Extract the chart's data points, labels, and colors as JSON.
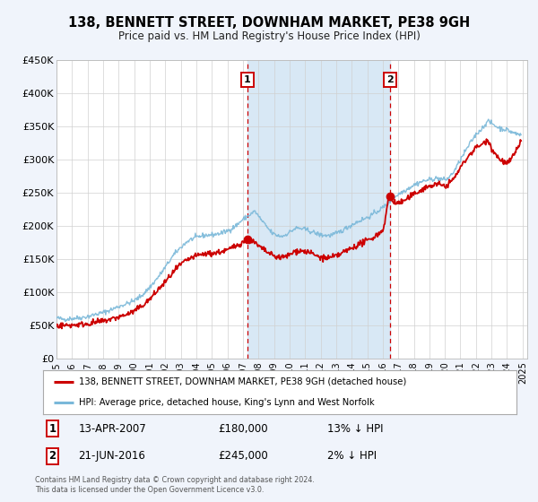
{
  "title": "138, BENNETT STREET, DOWNHAM MARKET, PE38 9GH",
  "subtitle": "Price paid vs. HM Land Registry's House Price Index (HPI)",
  "ylim": [
    0,
    450000
  ],
  "xlim_start": 1995.0,
  "xlim_end": 2025.3,
  "hpi_color": "#7ab8d9",
  "price_color": "#cc0000",
  "bg_color": "#f0f4fb",
  "plot_bg": "#ffffff",
  "highlight_color": "#d8e8f5",
  "sale1_x": 2007.28,
  "sale1_y": 180000,
  "sale2_x": 2016.47,
  "sale2_y": 245000,
  "legend_line1": "138, BENNETT STREET, DOWNHAM MARKET, PE38 9GH (detached house)",
  "legend_line2": "HPI: Average price, detached house, King's Lynn and West Norfolk",
  "sale1_date": "13-APR-2007",
  "sale1_price": "£180,000",
  "sale1_hpi": "13% ↓ HPI",
  "sale2_date": "21-JUN-2016",
  "sale2_price": "£245,000",
  "sale2_hpi": "2% ↓ HPI",
  "footer1": "Contains HM Land Registry data © Crown copyright and database right 2024.",
  "footer2": "This data is licensed under the Open Government Licence v3.0.",
  "yticks": [
    0,
    50000,
    100000,
    150000,
    200000,
    250000,
    300000,
    350000,
    400000,
    450000
  ],
  "ytick_labels": [
    "£0",
    "£50K",
    "£100K",
    "£150K",
    "£200K",
    "£250K",
    "£300K",
    "£350K",
    "£400K",
    "£450K"
  ],
  "xtick_years": [
    1995,
    1996,
    1997,
    1998,
    1999,
    2000,
    2001,
    2002,
    2003,
    2004,
    2005,
    2006,
    2007,
    2008,
    2009,
    2010,
    2011,
    2012,
    2013,
    2014,
    2015,
    2016,
    2017,
    2018,
    2019,
    2020,
    2021,
    2022,
    2023,
    2024,
    2025
  ]
}
